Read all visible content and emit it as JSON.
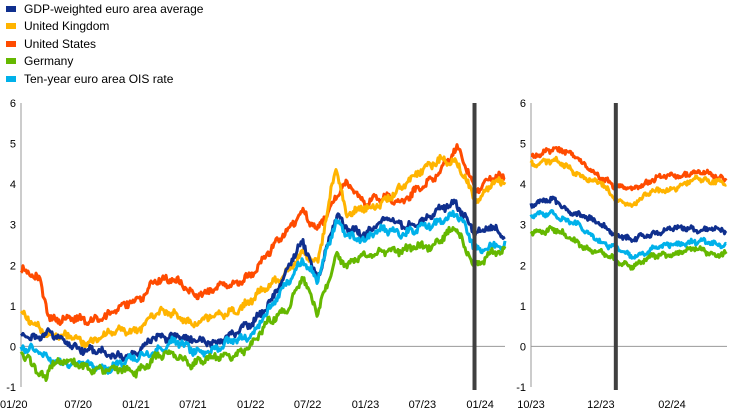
{
  "colors": {
    "gdp_weighted": "#0f2f8e",
    "uk": "#ffb400",
    "us": "#ff4b00",
    "germany": "#65b800",
    "ois": "#00b1ea",
    "event_line": "#404040"
  },
  "legend": [
    {
      "key": "gdp_weighted",
      "label": "GDP-weighted euro area average"
    },
    {
      "key": "uk",
      "label": "United Kingdom"
    },
    {
      "key": "us",
      "label": "United States"
    },
    {
      "key": "germany",
      "label": "Germany"
    },
    {
      "key": "ois",
      "label": "Ten-year euro area OIS rate"
    }
  ],
  "chart_data": [
    {
      "type": "line",
      "title": "",
      "xlabel": "",
      "ylabel": "",
      "ylim": [
        -1,
        6
      ],
      "yticks": [
        "6",
        "5",
        "4",
        "3",
        "2",
        "1",
        "0",
        "-1"
      ],
      "xticks": [
        "01/20",
        "07/20",
        "01/21",
        "07/21",
        "01/22",
        "07/22",
        "01/23",
        "07/23",
        "01/24"
      ],
      "xlim": [
        "2020-01-01",
        "2024-03-20"
      ],
      "event_line_x": "2023-12-14",
      "grid": false,
      "series": [
        {
          "key": "us",
          "name": "United States",
          "x": [
            "2020-01-01",
            "2020-03-01",
            "2020-04-01",
            "2020-06-01",
            "2020-08-01",
            "2020-10-01",
            "2021-01-01",
            "2021-02-01",
            "2021-03-01",
            "2021-05-01",
            "2021-07-01",
            "2021-09-01",
            "2021-11-01",
            "2022-01-01",
            "2022-03-01",
            "2022-05-01",
            "2022-06-15",
            "2022-08-01",
            "2022-10-01",
            "2022-11-01",
            "2023-01-01",
            "2023-03-01",
            "2023-05-01",
            "2023-07-01",
            "2023-08-01",
            "2023-10-20",
            "2023-11-15",
            "2023-12-14",
            "2024-01-01",
            "2024-02-01",
            "2024-03-20"
          ],
          "y": [
            1.9,
            1.6,
            0.7,
            0.7,
            0.6,
            0.8,
            1.1,
            1.3,
            1.7,
            1.6,
            1.3,
            1.4,
            1.5,
            1.8,
            2.3,
            2.9,
            3.4,
            2.8,
            3.7,
            4.1,
            3.5,
            3.7,
            3.6,
            3.9,
            4.1,
            4.9,
            4.4,
            3.9,
            3.9,
            4.2,
            4.2
          ]
        },
        {
          "key": "uk",
          "name": "United Kingdom",
          "x": [
            "2020-01-01",
            "2020-03-01",
            "2020-04-01",
            "2020-06-01",
            "2020-08-01",
            "2020-10-01",
            "2021-01-01",
            "2021-03-01",
            "2021-05-01",
            "2021-07-01",
            "2021-09-01",
            "2021-11-01",
            "2022-01-01",
            "2022-03-01",
            "2022-05-01",
            "2022-06-15",
            "2022-08-01",
            "2022-09-28",
            "2022-10-15",
            "2022-11-01",
            "2023-01-01",
            "2023-03-01",
            "2023-05-01",
            "2023-07-01",
            "2023-08-20",
            "2023-10-15",
            "2023-11-15",
            "2023-12-14",
            "2024-01-01",
            "2024-02-01",
            "2024-03-20"
          ],
          "y": [
            0.8,
            0.5,
            0.3,
            0.2,
            0.1,
            0.3,
            0.4,
            0.8,
            0.8,
            0.6,
            0.7,
            0.9,
            1.1,
            1.5,
            1.9,
            2.3,
            2.0,
            4.5,
            3.9,
            3.2,
            3.4,
            3.6,
            3.9,
            4.4,
            4.6,
            4.5,
            4.2,
            3.6,
            3.7,
            4.0,
            4.0
          ]
        },
        {
          "key": "gdp_weighted",
          "name": "GDP-weighted euro area average",
          "x": [
            "2020-01-01",
            "2020-03-01",
            "2020-04-01",
            "2020-06-01",
            "2020-08-01",
            "2020-10-01",
            "2021-01-01",
            "2021-03-01",
            "2021-05-01",
            "2021-07-01",
            "2021-09-01",
            "2021-11-01",
            "2022-01-01",
            "2022-03-01",
            "2022-05-01",
            "2022-06-15",
            "2022-08-01",
            "2022-10-01",
            "2022-11-01",
            "2023-01-01",
            "2023-03-01",
            "2023-05-01",
            "2023-07-01",
            "2023-08-01",
            "2023-10-15",
            "2023-11-15",
            "2023-12-14",
            "2024-01-01",
            "2024-02-01",
            "2024-03-20"
          ],
          "y": [
            0.3,
            0.2,
            0.3,
            0.1,
            -0.1,
            -0.2,
            -0.2,
            0.2,
            0.3,
            0.1,
            0.1,
            0.3,
            0.5,
            1.1,
            1.9,
            2.6,
            1.7,
            3.2,
            2.9,
            2.8,
            3.1,
            3.0,
            3.1,
            3.2,
            3.6,
            3.2,
            2.8,
            2.8,
            2.9,
            2.8
          ]
        },
        {
          "key": "ois",
          "name": "Ten-year euro area OIS rate",
          "x": [
            "2020-01-01",
            "2020-03-01",
            "2020-04-01",
            "2020-06-01",
            "2020-08-01",
            "2020-10-01",
            "2021-01-01",
            "2021-03-01",
            "2021-05-01",
            "2021-07-01",
            "2021-09-01",
            "2021-11-01",
            "2022-01-01",
            "2022-03-01",
            "2022-05-01",
            "2022-06-15",
            "2022-08-01",
            "2022-10-01",
            "2022-11-01",
            "2023-01-01",
            "2023-03-01",
            "2023-05-01",
            "2023-07-01",
            "2023-08-01",
            "2023-10-15",
            "2023-11-15",
            "2023-12-14",
            "2024-01-01",
            "2024-02-01",
            "2024-03-20"
          ],
          "y": [
            0.0,
            -0.2,
            -0.3,
            -0.4,
            -0.5,
            -0.5,
            -0.3,
            -0.1,
            0.1,
            -0.1,
            -0.1,
            0.1,
            0.3,
            0.9,
            1.6,
            2.2,
            1.6,
            3.1,
            2.8,
            2.6,
            2.9,
            2.8,
            2.9,
            3.0,
            3.3,
            2.9,
            2.4,
            2.3,
            2.5,
            2.5
          ]
        },
        {
          "key": "germany",
          "name": "Germany",
          "x": [
            "2020-01-01",
            "2020-03-01",
            "2020-03-20",
            "2020-04-01",
            "2020-06-01",
            "2020-08-01",
            "2020-10-01",
            "2021-01-01",
            "2021-03-01",
            "2021-05-01",
            "2021-07-01",
            "2021-09-01",
            "2021-11-01",
            "2022-01-01",
            "2022-03-01",
            "2022-05-01",
            "2022-06-15",
            "2022-08-01",
            "2022-10-01",
            "2022-11-01",
            "2023-01-01",
            "2023-03-01",
            "2023-05-01",
            "2023-07-01",
            "2023-08-01",
            "2023-10-15",
            "2023-11-15",
            "2023-12-14",
            "2024-01-01",
            "2024-02-01",
            "2024-03-20"
          ],
          "y": [
            -0.2,
            -0.6,
            -0.8,
            -0.4,
            -0.4,
            -0.5,
            -0.6,
            -0.6,
            -0.3,
            -0.2,
            -0.4,
            -0.3,
            -0.2,
            0.0,
            0.6,
            1.0,
            1.7,
            0.8,
            2.3,
            2.0,
            2.2,
            2.4,
            2.3,
            2.5,
            2.5,
            2.9,
            2.4,
            2.0,
            2.1,
            2.3,
            2.3
          ]
        }
      ]
    },
    {
      "type": "line",
      "title": "",
      "xlabel": "",
      "ylabel": "",
      "ylim": [
        -1,
        6
      ],
      "yticks": [
        "6",
        "5",
        "4",
        "3",
        "2",
        "1",
        "0",
        "-1"
      ],
      "xticks": [
        "10/23",
        "12/23",
        "02/24"
      ],
      "xlim": [
        "2023-10-01",
        "2024-03-20"
      ],
      "event_line_x": "2023-12-14",
      "grid": false,
      "series": [
        {
          "key": "us",
          "name": "United States",
          "x": [
            "2023-10-01",
            "2023-10-20",
            "2023-11-01",
            "2023-11-15",
            "2023-12-01",
            "2023-12-14",
            "2023-12-28",
            "2024-01-15",
            "2024-02-01",
            "2024-02-20",
            "2024-03-10",
            "2024-03-20"
          ],
          "y": [
            4.6,
            4.9,
            4.8,
            4.5,
            4.2,
            3.9,
            3.9,
            4.1,
            4.2,
            4.3,
            4.2,
            4.1
          ]
        },
        {
          "key": "uk",
          "name": "United Kingdom",
          "x": [
            "2023-10-01",
            "2023-10-20",
            "2023-11-01",
            "2023-11-15",
            "2023-12-01",
            "2023-12-14",
            "2023-12-28",
            "2024-01-15",
            "2024-02-01",
            "2024-02-20",
            "2024-03-10",
            "2024-03-20"
          ],
          "y": [
            4.5,
            4.6,
            4.4,
            4.2,
            4.0,
            3.6,
            3.5,
            3.8,
            3.9,
            4.1,
            4.1,
            4.0
          ]
        },
        {
          "key": "gdp_weighted",
          "name": "GDP-weighted euro area average",
          "x": [
            "2023-10-01",
            "2023-10-20",
            "2023-11-01",
            "2023-11-15",
            "2023-12-01",
            "2023-12-14",
            "2023-12-28",
            "2024-01-15",
            "2024-02-01",
            "2024-02-20",
            "2024-03-10",
            "2024-03-20"
          ],
          "y": [
            3.5,
            3.6,
            3.4,
            3.2,
            3.0,
            2.8,
            2.6,
            2.8,
            2.9,
            2.9,
            2.9,
            2.8
          ]
        },
        {
          "key": "ois",
          "name": "Ten-year euro area OIS rate",
          "x": [
            "2023-10-01",
            "2023-10-20",
            "2023-11-01",
            "2023-11-15",
            "2023-12-01",
            "2023-12-14",
            "2023-12-28",
            "2024-01-15",
            "2024-02-01",
            "2024-02-20",
            "2024-03-10",
            "2024-03-20"
          ],
          "y": [
            3.2,
            3.3,
            3.1,
            2.9,
            2.6,
            2.4,
            2.2,
            2.4,
            2.5,
            2.6,
            2.5,
            2.5
          ]
        },
        {
          "key": "germany",
          "name": "Germany",
          "x": [
            "2023-10-01",
            "2023-10-20",
            "2023-11-01",
            "2023-11-15",
            "2023-12-01",
            "2023-12-14",
            "2023-12-28",
            "2024-01-15",
            "2024-02-01",
            "2024-02-20",
            "2024-03-10",
            "2024-03-20"
          ],
          "y": [
            2.8,
            2.9,
            2.7,
            2.5,
            2.3,
            2.1,
            2.0,
            2.2,
            2.3,
            2.4,
            2.3,
            2.3
          ]
        }
      ]
    }
  ]
}
